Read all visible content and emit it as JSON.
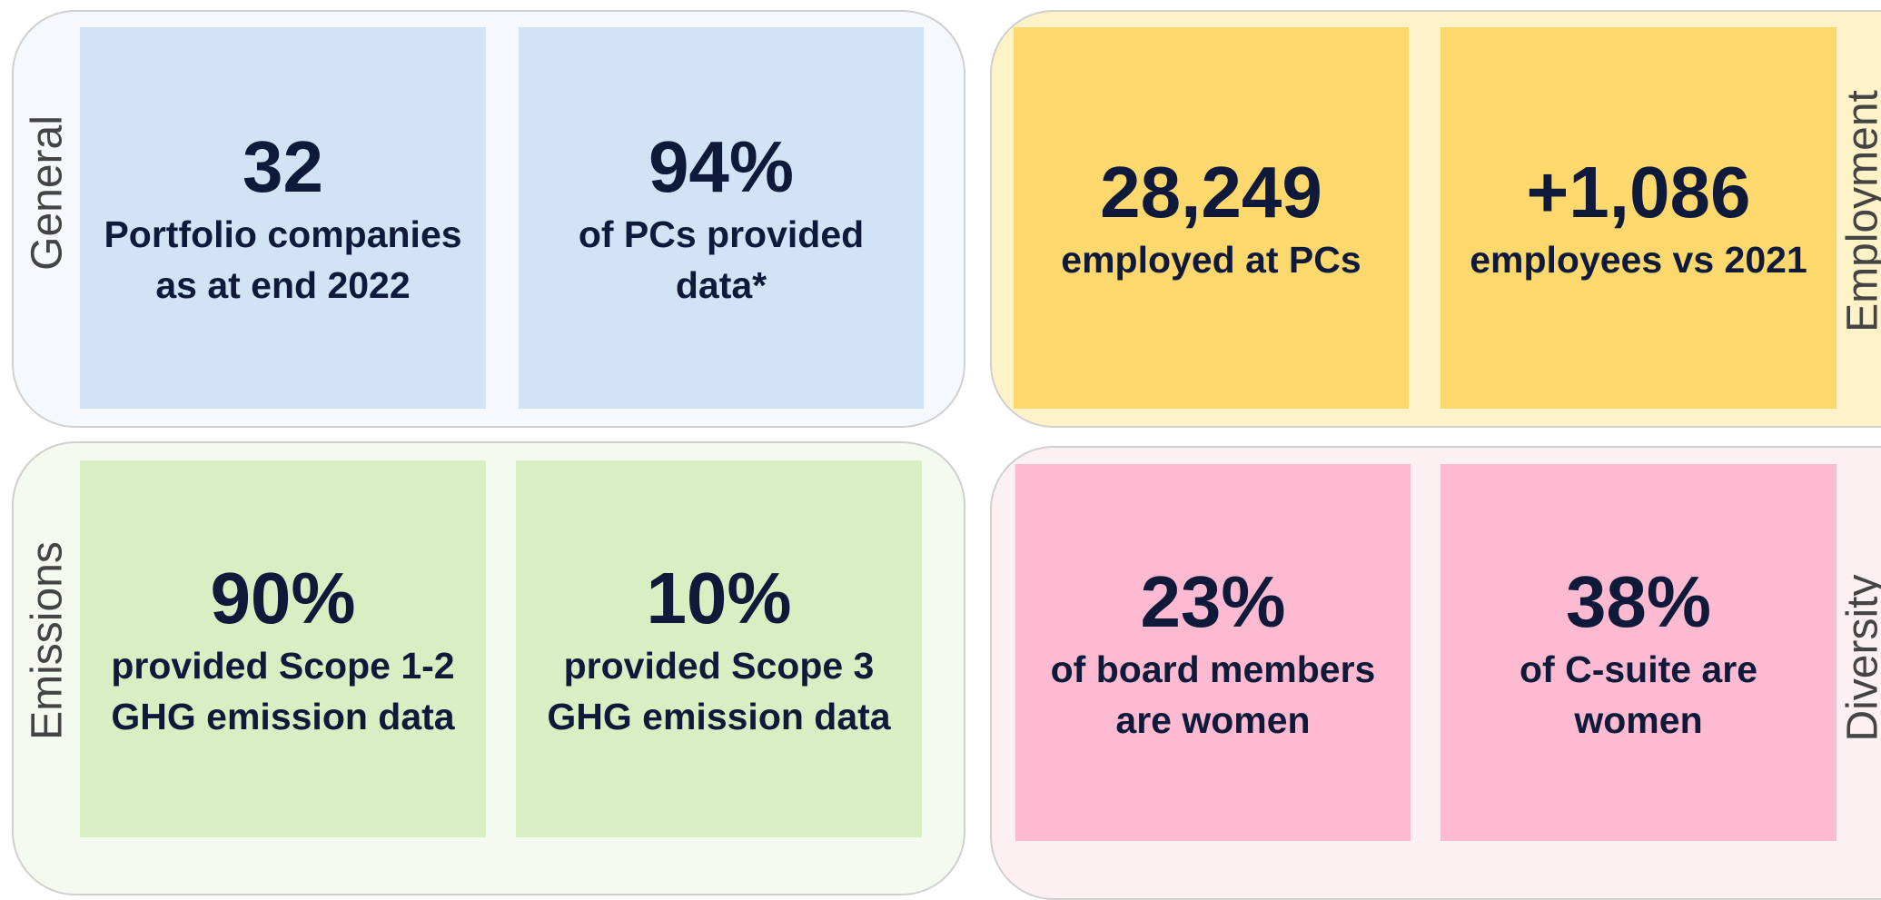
{
  "panels": [
    {
      "label": "General",
      "cards": [
        {
          "value": "32",
          "lines": [
            "Portfolio companies",
            "as at end 2022"
          ]
        },
        {
          "value": "94%",
          "lines": [
            "of PCs provided",
            "data*"
          ]
        }
      ]
    },
    {
      "label": "Employment",
      "cards": [
        {
          "value": "28,249",
          "lines": [
            "employed at PCs"
          ]
        },
        {
          "value": "+1,086",
          "lines": [
            "employees vs 2021"
          ]
        }
      ]
    },
    {
      "label": "Emissions",
      "cards": [
        {
          "value": "90%",
          "lines": [
            "provided Scope 1-2",
            "GHG emission data"
          ]
        },
        {
          "value": "10%",
          "lines": [
            "provided Scope 3",
            "GHG emission data"
          ]
        }
      ]
    },
    {
      "label": "Diversity",
      "cards": [
        {
          "value": "23%",
          "lines": [
            "of board members",
            "are women"
          ]
        },
        {
          "value": "38%",
          "lines": [
            "of C-suite are",
            "women"
          ]
        }
      ]
    }
  ]
}
